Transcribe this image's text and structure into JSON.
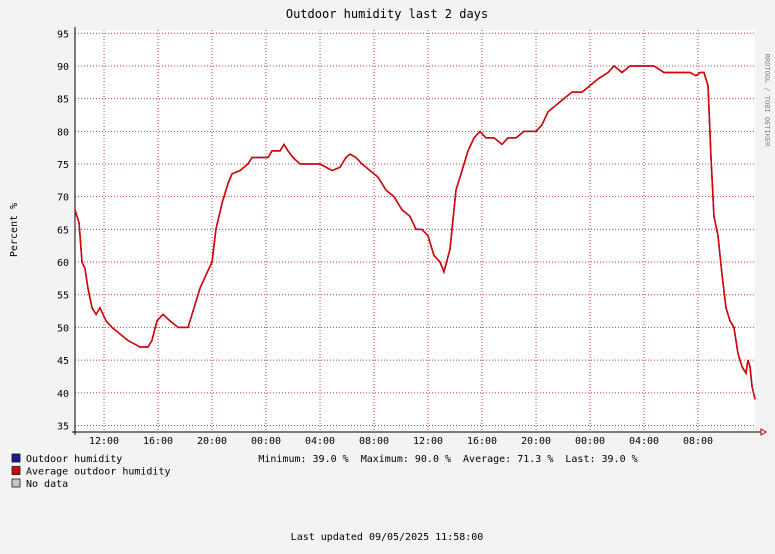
{
  "chart_data": {
    "type": "line",
    "title": "Outdoor humidity last 2 days",
    "y_label": "Percent  %",
    "side_label": "RRDTOOL / TOBI OETIKER",
    "x": [
      0,
      0.3,
      0.52,
      0.74,
      0.96,
      1.26,
      1.56,
      1.85,
      2.3,
      2.74,
      3.33,
      3.93,
      4.37,
      4.81,
      5.41,
      5.7,
      6.07,
      6.52,
      7.04,
      7.63,
      8.37,
      8.67,
      9.26,
      9.7,
      10.15,
      10.44,
      10.89,
      11.33,
      11.63,
      12.22,
      12.81,
      13.11,
      13.7,
      14.3,
      14.59,
      15.19,
      15.48,
      15.78,
      16.15,
      16.67,
      17.41,
      18.15,
      19.04,
      19.63,
      20.07,
      20.37,
      20.81,
      21.26,
      21.85,
      22.44,
      23.04,
      23.63,
      24.22,
      24.81,
      25.26,
      25.7,
      26.15,
      26.59,
      27.04,
      27.33,
      27.78,
      28.22,
      28.67,
      29.11,
      29.56,
      30,
      30.44,
      31.04,
      31.63,
      32.07,
      32.67,
      33.26,
      34.15,
      34.59,
      35.04,
      35.63,
      36.22,
      36.81,
      37.56,
      38.15,
      38.74,
      39.48,
      39.93,
      40.52,
      41.11,
      42.15,
      42.89,
      43.63,
      44.81,
      45.56,
      46,
      46.3,
      46.59,
      46.89,
      47.11,
      47.33,
      47.63,
      47.93,
      48.22,
      48.52,
      48.81,
      49.11,
      49.41,
      49.7,
      49.85,
      50,
      50.15,
      50.37
    ],
    "series": [
      {
        "name": "Outdoor humidity",
        "color": "#1c1c9c",
        "values": [
          68,
          66,
          60,
          59,
          56,
          53,
          52,
          53,
          51,
          50,
          49,
          48,
          47.5,
          47,
          47,
          48,
          51,
          52,
          51,
          50,
          50,
          52,
          56,
          58,
          60,
          65,
          69,
          72,
          73.5,
          74,
          75,
          76,
          76,
          76,
          77,
          77,
          78,
          77,
          76,
          75,
          75,
          75,
          74,
          74.5,
          76,
          76.5,
          76,
          75,
          74,
          73,
          71,
          70,
          68,
          67,
          65,
          65,
          64,
          61,
          60,
          58.5,
          62,
          71,
          74,
          77,
          79,
          80,
          79,
          79,
          78,
          79,
          79,
          80,
          80,
          81,
          83,
          84,
          85,
          86,
          86,
          87,
          88,
          89,
          90,
          89,
          90,
          90,
          90,
          89,
          89,
          89,
          88.5,
          89,
          89,
          87,
          76,
          67,
          64,
          58,
          53,
          51,
          50,
          46,
          44,
          43,
          45,
          44,
          41,
          39
        ]
      },
      {
        "name": "Average outdoor humidity",
        "color": "#e00000",
        "values": [
          68,
          66,
          60,
          59,
          56,
          53,
          52,
          53,
          51,
          50,
          49,
          48,
          47.5,
          47,
          47,
          48,
          51,
          52,
          51,
          50,
          50,
          52,
          56,
          58,
          60,
          65,
          69,
          72,
          73.5,
          74,
          75,
          76,
          76,
          76,
          77,
          77,
          78,
          77,
          76,
          75,
          75,
          75,
          74,
          74.5,
          76,
          76.5,
          76,
          75,
          74,
          73,
          71,
          70,
          68,
          67,
          65,
          65,
          64,
          61,
          60,
          58.5,
          62,
          71,
          74,
          77,
          79,
          80,
          79,
          79,
          78,
          79,
          79,
          80,
          80,
          81,
          83,
          84,
          85,
          86,
          86,
          87,
          88,
          89,
          90,
          89,
          90,
          90,
          90,
          89,
          89,
          89,
          88.5,
          89,
          89,
          87,
          76,
          67,
          64,
          58,
          53,
          51,
          50,
          46,
          44,
          43,
          45,
          44,
          41,
          39
        ]
      }
    ],
    "no_data": {
      "name": "No data",
      "color": "#c8c8c8"
    },
    "xlim": [
      0,
      50.37
    ],
    "xticks": [
      {
        "value": 2.15,
        "label": "12:00"
      },
      {
        "value": 6.15,
        "label": "16:00"
      },
      {
        "value": 10.15,
        "label": "20:00"
      },
      {
        "value": 14.15,
        "label": "00:00"
      },
      {
        "value": 18.15,
        "label": "04:00"
      },
      {
        "value": 22.15,
        "label": "08:00"
      },
      {
        "value": 26.15,
        "label": "12:00"
      },
      {
        "value": 30.15,
        "label": "16:00"
      },
      {
        "value": 34.15,
        "label": "20:00"
      },
      {
        "value": 38.15,
        "label": "00:00"
      },
      {
        "value": 42.15,
        "label": "04:00"
      },
      {
        "value": 46.15,
        "label": "08:00"
      }
    ],
    "ylim": [
      34,
      95.5
    ],
    "yticks": [
      35,
      40,
      45,
      50,
      55,
      60,
      65,
      70,
      75,
      80,
      85,
      90,
      95
    ],
    "grid": true,
    "stats": "Minimum: 39.0 %  Maximum: 90.0 %  Average: 71.3 %  Last: 39.0 %",
    "footer": "Last updated 09/05/2025 11:58:00"
  }
}
